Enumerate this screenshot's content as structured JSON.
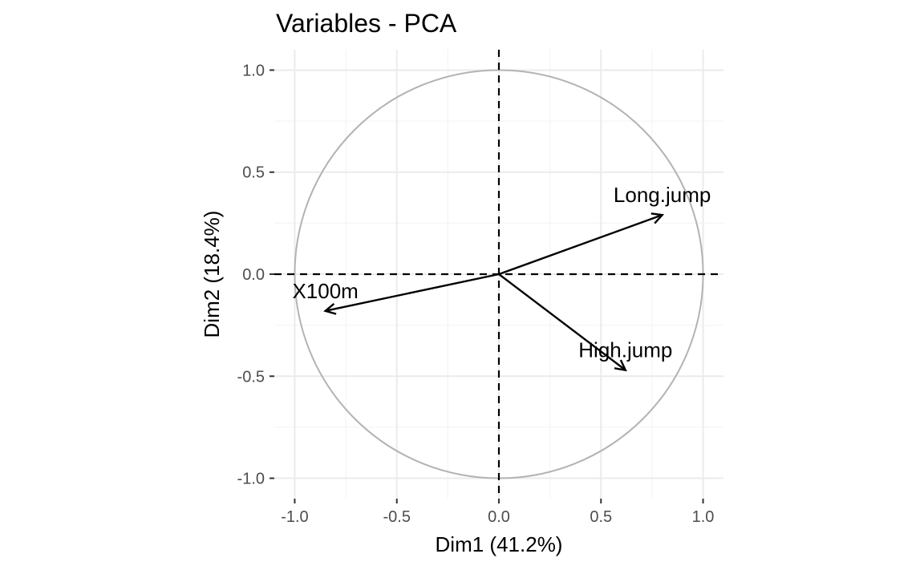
{
  "chart_data": {
    "type": "scatter",
    "title": "Variables - PCA",
    "xlabel": "Dim1 (41.2%)",
    "ylabel": "Dim2 (18.4%)",
    "xlim": [
      -1.1,
      1.1
    ],
    "ylim": [
      -1.1,
      1.1
    ],
    "x_ticks": [
      -1.0,
      -0.5,
      0.0,
      0.5,
      1.0
    ],
    "y_ticks": [
      -1.0,
      -0.5,
      0.0,
      0.5,
      1.0
    ],
    "x_tick_labels": [
      "-1.0",
      "-0.5",
      "0.0",
      "0.5",
      "1.0"
    ],
    "y_tick_labels": [
      "-1.0",
      "-0.5",
      "0.0",
      "0.5",
      "1.0"
    ],
    "grid": true,
    "correlation_circle_radius": 1.0,
    "variables": [
      {
        "name": "X100m",
        "x": -0.85,
        "y": -0.18
      },
      {
        "name": "Long.jump",
        "x": 0.8,
        "y": 0.29
      },
      {
        "name": "High.jump",
        "x": 0.62,
        "y": -0.47
      }
    ],
    "colors": {
      "arrow": "#000000",
      "circle": "#b3b3b3",
      "grid_major": "#ebebeb",
      "grid_minor": "#f5f5f5",
      "tick": "#333333",
      "tick_label": "#4d4d4d"
    }
  }
}
